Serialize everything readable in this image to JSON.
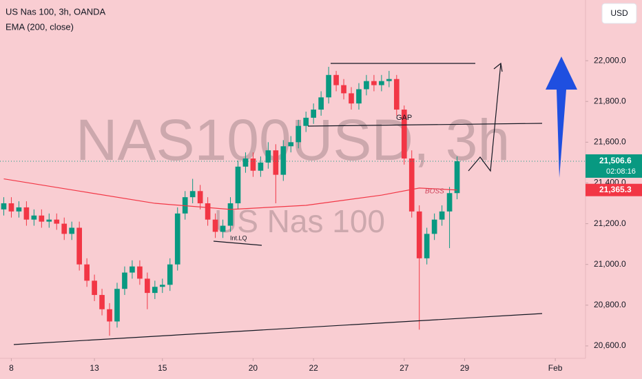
{
  "chart_data": {
    "type": "candlestick",
    "title": "US Nas 100, 3h, OANDA",
    "indicator": "EMA (200, close)",
    "currency": "USD",
    "watermark": "NAS100USD, 3h",
    "watermark_subtitle": "US Nas 100",
    "up_color": "#089981",
    "down_color": "#f23645",
    "x": [
      0,
      1,
      2,
      3,
      4,
      5,
      6,
      7,
      8,
      9,
      10,
      11,
      12,
      13,
      14,
      15,
      16,
      17,
      18,
      19,
      20,
      21,
      22,
      23,
      24,
      25,
      26,
      27,
      28,
      29,
      30,
      31,
      32,
      33,
      34,
      35,
      36,
      37,
      38,
      39,
      40,
      41,
      42,
      43,
      44,
      45,
      46,
      47,
      48,
      49,
      50,
      51,
      52,
      53,
      54,
      55,
      56,
      57,
      58,
      59,
      60
    ],
    "open": [
      21270,
      21300,
      21260,
      21280,
      21220,
      21240,
      21210,
      21220,
      21200,
      21150,
      21180,
      21000,
      20920,
      20850,
      20780,
      20720,
      20880,
      20960,
      20990,
      20930,
      20860,
      20890,
      20900,
      21000,
      21250,
      21330,
      21360,
      21300,
      21220,
      21160,
      21190,
      21300,
      21480,
      21520,
      21460,
      21500,
      21560,
      21440,
      21580,
      21600,
      21680,
      21720,
      21760,
      21820,
      21930,
      21880,
      21840,
      21790,
      21860,
      21900,
      21880,
      21900,
      21910,
      21760,
      21520,
      21260,
      21030,
      21150,
      21220,
      21260,
      21350
    ],
    "high": [
      21330,
      21330,
      21310,
      21310,
      21270,
      21270,
      21250,
      21250,
      21230,
      21210,
      21210,
      21030,
      20950,
      20880,
      20810,
      20910,
      20990,
      21020,
      21020,
      20960,
      20920,
      20930,
      21030,
      21280,
      21360,
      21420,
      21390,
      21330,
      21250,
      21220,
      21330,
      21510,
      21550,
      21550,
      21530,
      21600,
      21590,
      21610,
      21630,
      21710,
      21750,
      21790,
      21850,
      21970,
      21950,
      21910,
      21870,
      21890,
      21930,
      21930,
      21930,
      21950,
      21930,
      21780,
      21560,
      21290,
      21180,
      21250,
      21290,
      21380,
      21530
    ],
    "low": [
      21240,
      21230,
      21230,
      21190,
      21190,
      21180,
      21180,
      21170,
      21120,
      21120,
      20970,
      20890,
      20820,
      20750,
      20650,
      20690,
      20850,
      20930,
      20900,
      20780,
      20830,
      20860,
      20870,
      20970,
      21220,
      21300,
      21270,
      21190,
      21130,
      21130,
      21160,
      21270,
      21450,
      21430,
      21430,
      21470,
      21300,
      21410,
      21550,
      21570,
      21650,
      21690,
      21730,
      21790,
      21850,
      21810,
      21760,
      21760,
      21830,
      21850,
      21850,
      21870,
      21730,
      21490,
      21230,
      20680,
      21000,
      21120,
      21190,
      21080,
      21320
    ],
    "close": [
      21300,
      21260,
      21280,
      21220,
      21240,
      21210,
      21220,
      21200,
      21150,
      21180,
      21000,
      20920,
      20850,
      20780,
      20720,
      20880,
      20960,
      20990,
      20930,
      20860,
      20890,
      20900,
      21000,
      21250,
      21330,
      21360,
      21300,
      21220,
      21160,
      21190,
      21300,
      21480,
      21520,
      21460,
      21500,
      21560,
      21440,
      21580,
      21600,
      21680,
      21720,
      21760,
      21820,
      21930,
      21880,
      21840,
      21790,
      21860,
      21900,
      21880,
      21900,
      21910,
      21760,
      21520,
      21260,
      21030,
      21150,
      21220,
      21260,
      21350,
      21506.6
    ],
    "ema": {
      "color": "#f23645",
      "x": [
        0,
        10,
        20,
        30,
        40,
        50,
        55,
        60
      ],
      "values": [
        21420,
        21360,
        21300,
        21270,
        21290,
        21340,
        21375,
        21365.3
      ]
    },
    "last_price": {
      "value": 21506.6,
      "label": "21,506.6"
    },
    "countdown": "02:08:16",
    "ema_price": {
      "value": 21365.3,
      "label": "21,365.3"
    },
    "annotations": [
      "GAP",
      "BOSS",
      "Int.LQ"
    ],
    "xlim": [
      -0.5,
      77
    ],
    "ylim": [
      20539,
      22298
    ],
    "xticks": [
      {
        "value": 1,
        "label": "8"
      },
      {
        "value": 12,
        "label": "13"
      },
      {
        "value": 21,
        "label": "15"
      },
      {
        "value": 33,
        "label": "20"
      },
      {
        "value": 41,
        "label": "22"
      },
      {
        "value": 53,
        "label": "27"
      },
      {
        "value": 61,
        "label": "29"
      },
      {
        "value": 73,
        "label": "Feb"
      }
    ],
    "yticks": [
      {
        "value": 20600,
        "label": "20,600.0"
      },
      {
        "value": 20800,
        "label": "20,800.0"
      },
      {
        "value": 21000,
        "label": "21,000.0"
      },
      {
        "value": 21200,
        "label": "21,200.0"
      },
      {
        "value": 21400,
        "label": "21,400.0"
      },
      {
        "value": 21600,
        "label": "21,600.0"
      },
      {
        "value": 21800,
        "label": "21,800.0"
      },
      {
        "value": 22000,
        "label": "22,000.0"
      }
    ]
  }
}
